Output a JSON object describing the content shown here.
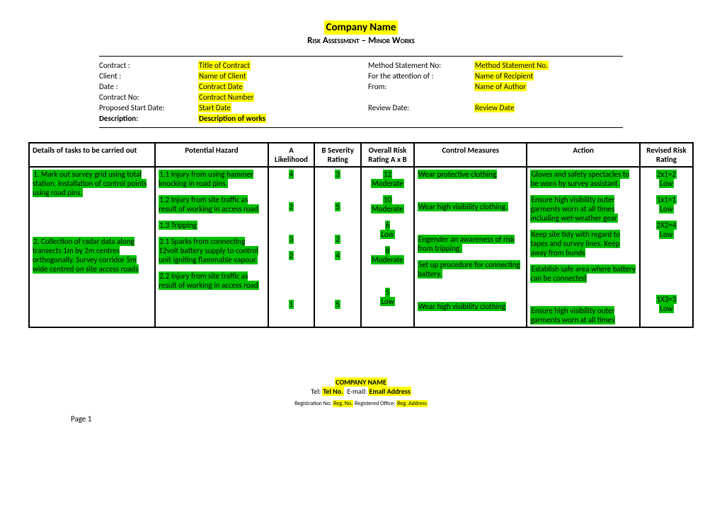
{
  "title": "Company Name",
  "subtitle": "Risk Assessment – Minor Works",
  "info": {
    "contract_label": "Contract :",
    "contract_val": "Title of Contract",
    "ms_no_label": "Method Statement No:",
    "ms_no_val": "Method Statement No.",
    "client_label": "Client :",
    "client_val": "Name of Client",
    "attention_label": "For the attention of :",
    "attention_val": "Name of Recipient",
    "date_label": "Date :",
    "date_val": "Contract Date",
    "from_label": "From:",
    "from_val": "Name of Author",
    "contract_no_label": "Contract No:",
    "contract_no_val": "Contract Number",
    "start_label": "Proposed Start Date:",
    "start_val": "Start Date",
    "review_label": "Review Date:",
    "review_val": "Review Date",
    "desc_label": "Description:",
    "desc_val": "Description of works"
  },
  "headers": {
    "task": "Details of tasks to be carried out",
    "hazard": "Potential Hazard",
    "a": "A Likelihood",
    "b": "B Severity Rating",
    "overall": "Overall Risk Rating A x B",
    "control": "Control Measures",
    "action": "Action",
    "revised": "Revised Risk Rating"
  },
  "tasks": {
    "t1": "1.  Mark out survey grid using total station. Installation of control points using road pins.",
    "t2": "2.  Collection of radar data along transects 1m by 2m centres orthogonally. Survey corridor 5m wide centred on site access roads"
  },
  "hazards": {
    "h11": "1.1  Injury from using hammer knocking in road pins.",
    "h12": "1.2  Injury from site traffic as result of working in access road",
    "h13": "1.3  Tripping",
    "h21": "2.1  Sparks from connecting 12volt battery supply to control unit igniting flammable vapour.",
    "h22": "2.2  Injury from site traffic as result of working in access road"
  },
  "vals": {
    "a11": "4",
    "b11": "3",
    "o11a": "12",
    "o11b": "Moderate",
    "a12": "2",
    "b12": "5",
    "o12a": "10",
    "o12b": "Moderate",
    "a13": "3",
    "b13": "2",
    "o13a": "6",
    "o13b": "Low",
    "a21": "2",
    "b21": "4",
    "o21a": "8",
    "o21b": "Moderate",
    "a22": "1",
    "b22": "5",
    "o22a": "5",
    "o22b": "Low"
  },
  "controls": {
    "c11": "Wear protective clothing",
    "c12": "Wear high visibility clothing.",
    "c13": "Engender an awareness of risk from tripping.",
    "c21": "Set up procedure for connecting battery.",
    "c22": "Wear high visibility clothing"
  },
  "actions": {
    "ac11": "Gloves and safety spectacles to be worn by survey assistant.",
    "ac12": "Ensure high visibility outer garments worn at all times including wet-weather gear",
    "ac13": "Keep site tidy with regard to tapes and survey lines. Keep away from bunds",
    "ac21": "Establish safe area where battery can be connected",
    "ac22": "Ensure high visibility outer garments worn at all times"
  },
  "revised": {
    "r11a": "2x1=2",
    "r11b": "Low",
    "r12a": "1x1=1",
    "r12b": "Low",
    "r13a": "2X2=4",
    "r13b": "Low",
    "r22a": "1X3=3",
    "r22b": "Low"
  },
  "footer": {
    "company": "COMPANY NAME",
    "tel_label": "Tel:",
    "tel_val": "Tel No.",
    "email_label": "E-mail:",
    "email_val": "Email Address",
    "reg_no_label": "Registration No:",
    "reg_no_val": "Reg. No.",
    "reg_office_label": "Registered Office:",
    "reg_office_val": "Reg. Address",
    "page": "Page 1"
  }
}
